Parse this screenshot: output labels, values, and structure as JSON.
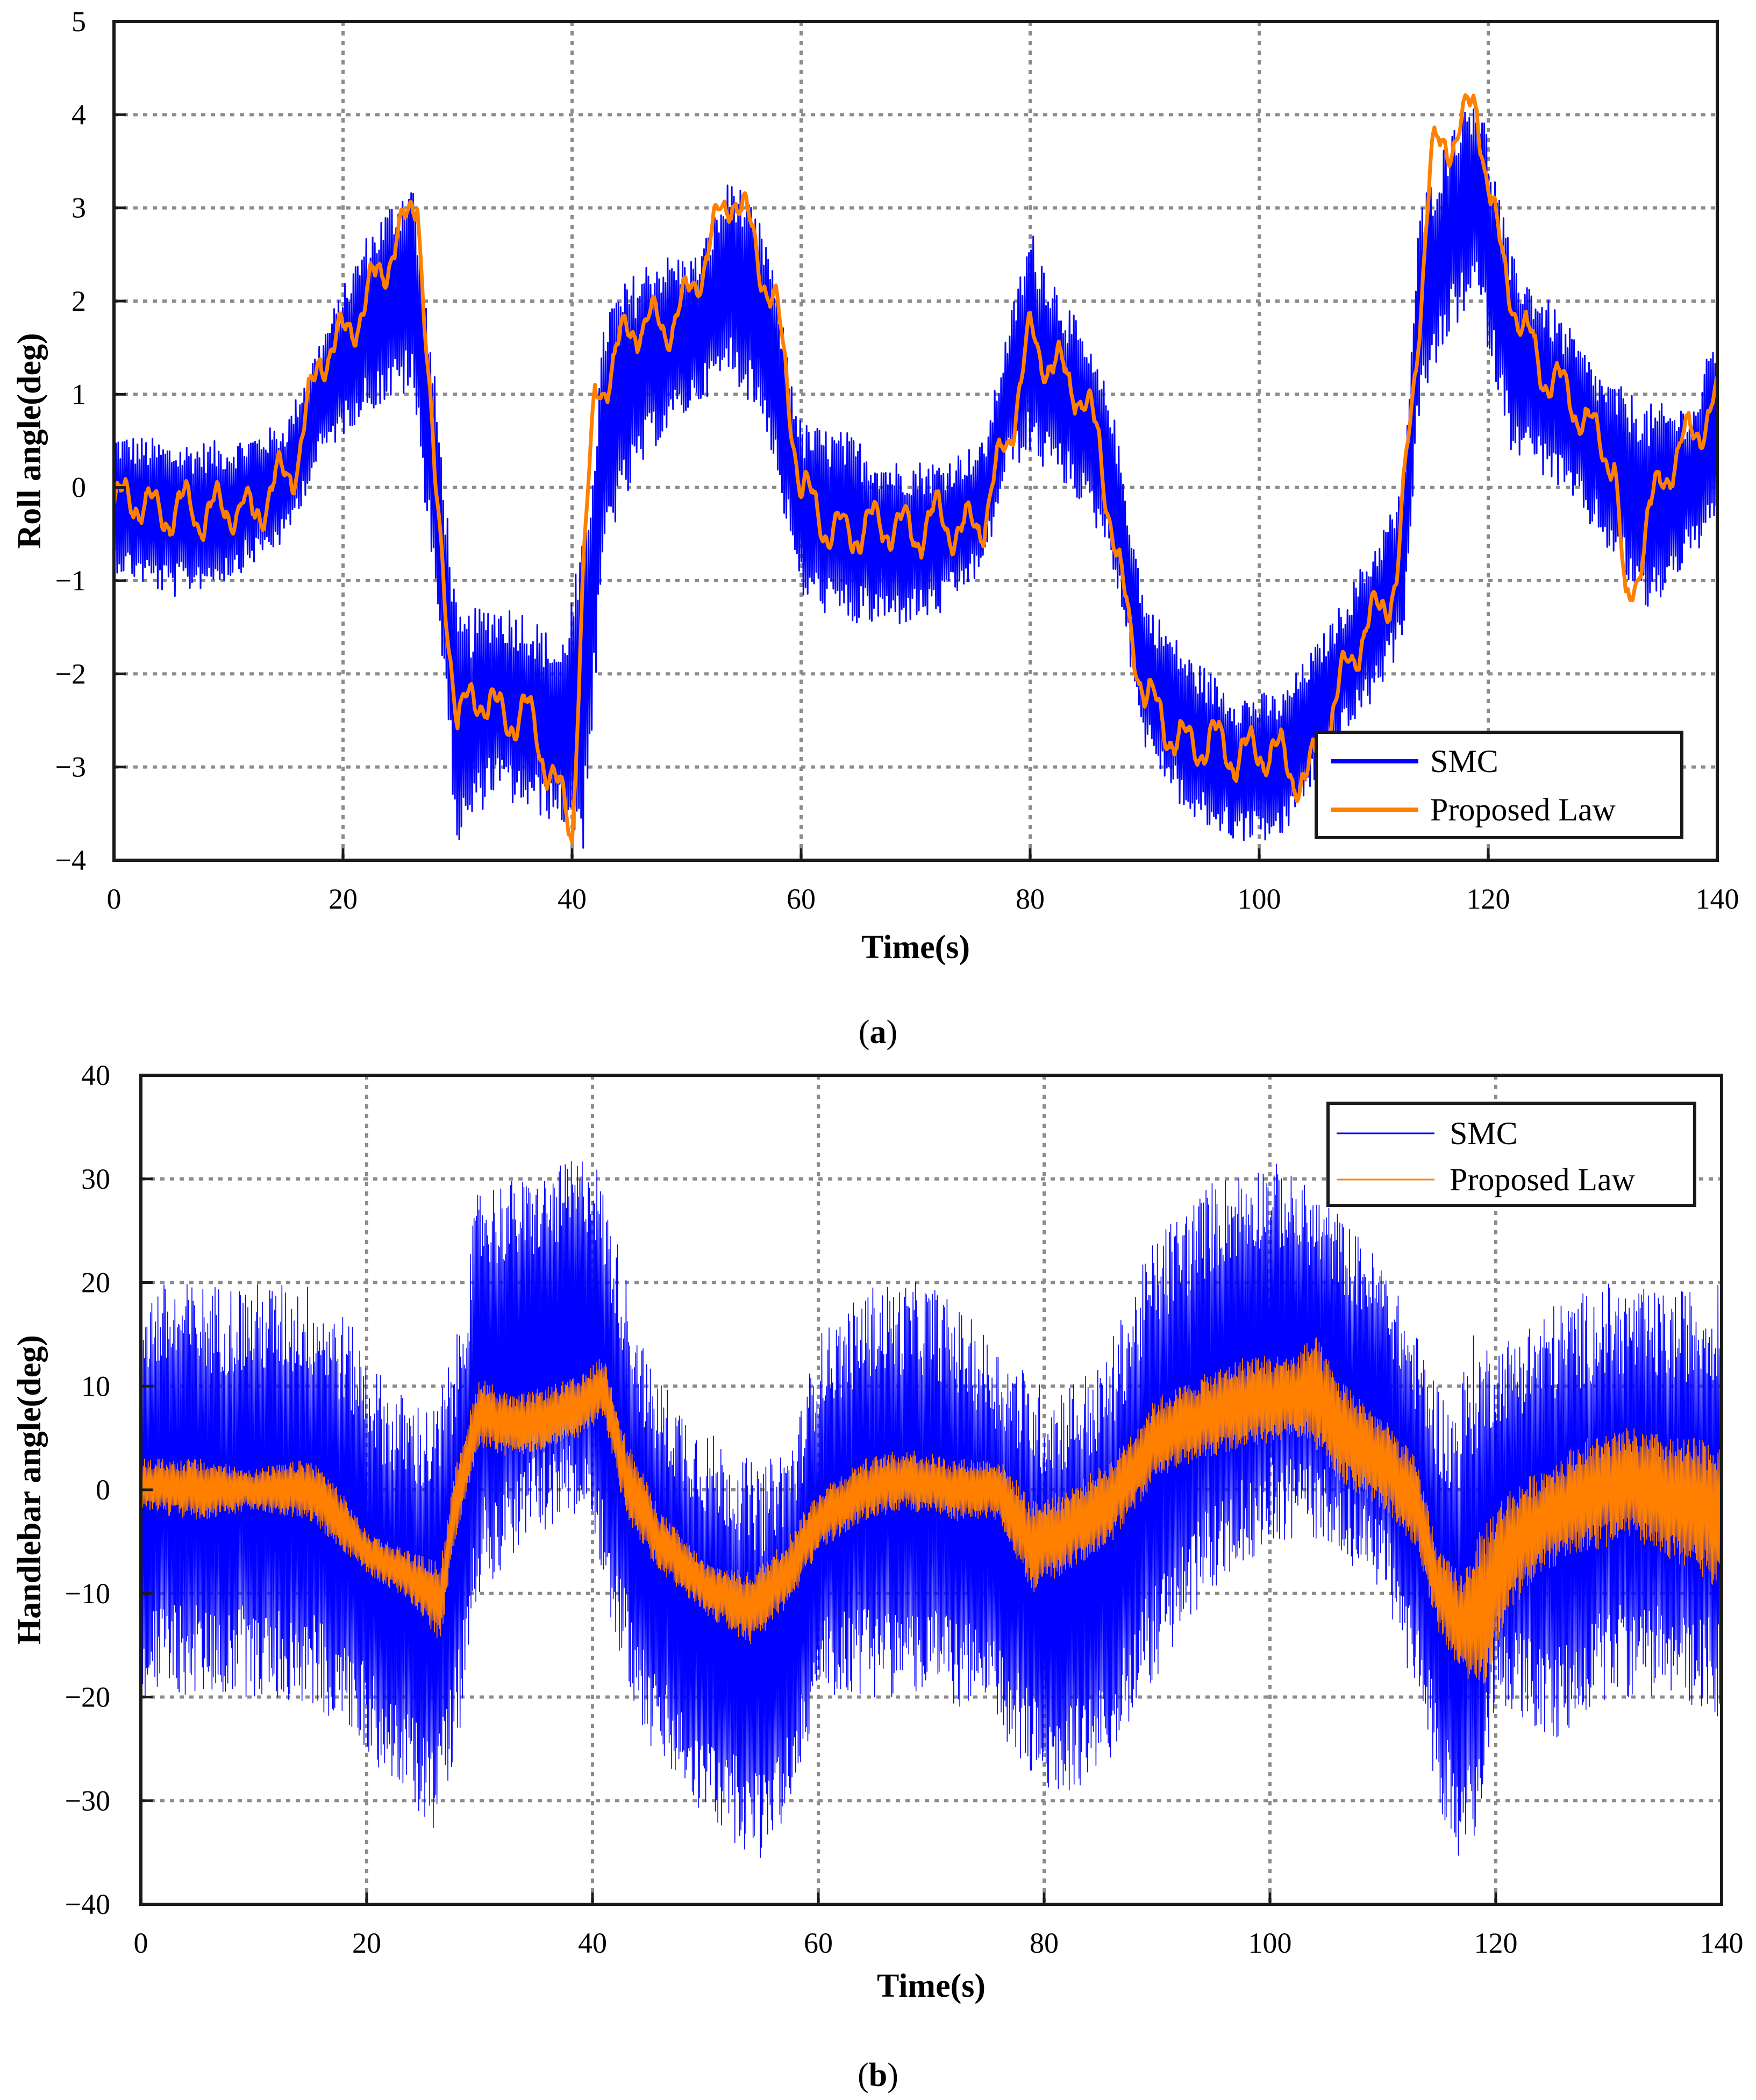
{
  "chart_data": [
    {
      "type": "line",
      "panel_caption": {
        "open": "(",
        "letter": "a",
        "close": ")"
      },
      "xlabel": "Time(s)",
      "ylabel": "Roll angle(deg)",
      "xlim": [
        0,
        140
      ],
      "ylim": [
        -4,
        5
      ],
      "xticks": [
        0,
        20,
        40,
        60,
        80,
        100,
        120,
        140
      ],
      "yticks": [
        -4,
        -3,
        -2,
        -1,
        0,
        1,
        2,
        3,
        4,
        5
      ],
      "ytick_labels": [
        "−4",
        "−3",
        "−2",
        "−1",
        "0",
        "1",
        "2",
        "3",
        "4",
        "5"
      ],
      "grid": true,
      "legend_position": "bottom-right",
      "series": [
        {
          "name": "SMC",
          "color": "#0000ff",
          "kind": "band",
          "x": [
            0,
            5,
            10,
            15,
            18,
            22,
            26,
            28,
            30,
            33,
            36,
            39,
            41,
            43,
            47,
            51,
            54,
            57,
            60,
            64,
            68,
            72,
            76,
            78,
            80,
            84,
            87,
            90,
            94,
            98,
            102,
            106,
            110,
            112.5,
            114,
            117,
            119,
            122,
            126,
            130,
            134,
            138,
            140
          ],
          "upper": [
            0.6,
            0.5,
            0.5,
            0.7,
            1.6,
            2.7,
            3.4,
            1.2,
            -1.4,
            -1.2,
            -1.3,
            -1.7,
            -0.5,
            2.0,
            2.5,
            2.5,
            3.4,
            2.7,
            0.7,
            0.6,
            0.3,
            0.3,
            0.5,
            1.7,
            2.8,
            1.8,
            1.0,
            -1.2,
            -1.8,
            -2.2,
            -2.2,
            -1.5,
            -0.6,
            0.0,
            3.0,
            4.0,
            4.4,
            2.5,
            1.9,
            1.2,
            0.9,
            0.9,
            1.8
          ],
          "lower": [
            -0.9,
            -1.2,
            -1.0,
            -0.6,
            0.3,
            0.8,
            1.0,
            -1.0,
            -3.9,
            -3.3,
            -3.5,
            -3.6,
            -3.9,
            -0.6,
            0.4,
            0.9,
            1.2,
            0.6,
            -1.2,
            -1.5,
            -1.5,
            -1.4,
            -0.9,
            0.2,
            0.3,
            -0.1,
            -0.7,
            -2.8,
            -3.6,
            -3.8,
            -3.8,
            -2.9,
            -2.3,
            -1.7,
            0.8,
            1.7,
            2.0,
            0.4,
            0.0,
            -0.6,
            -1.4,
            -0.7,
            -0.6
          ]
        },
        {
          "name": "Proposed Law",
          "color": "#ff8000",
          "kind": "line",
          "x": [
            0,
            2,
            4,
            6,
            8,
            10,
            12,
            14,
            16,
            18,
            20,
            22,
            24,
            25.5,
            26.5,
            28,
            30,
            32,
            34,
            36,
            38,
            40,
            41,
            42,
            44,
            46,
            48,
            50,
            52,
            54,
            56,
            58,
            60,
            62,
            64,
            66,
            68,
            70,
            72,
            74,
            76,
            78,
            80,
            82,
            84,
            86,
            88,
            90,
            92,
            94,
            96,
            98,
            100,
            102,
            104,
            106,
            108,
            110,
            112,
            113.5,
            115,
            117,
            119,
            121,
            123,
            125,
            127,
            129,
            131,
            132,
            134,
            136,
            138,
            140
          ],
          "y": [
            -0.2,
            -0.1,
            -0.3,
            -0.2,
            -0.3,
            -0.2,
            -0.3,
            0.0,
            0.3,
            1.4,
            1.6,
            2.0,
            2.5,
            2.8,
            3.2,
            0.0,
            -2.5,
            -2.2,
            -2.5,
            -2.4,
            -3.0,
            -3.7,
            -0.8,
            0.9,
            1.5,
            1.8,
            1.7,
            2.0,
            2.6,
            3.2,
            2.6,
            1.8,
            0.0,
            -0.4,
            -0.5,
            -0.4,
            -0.4,
            -0.5,
            -0.3,
            -0.5,
            -0.3,
            0.5,
            1.6,
            1.3,
            1.1,
            0.5,
            -1.1,
            -2.2,
            -2.6,
            -2.8,
            -2.7,
            -2.9,
            -2.8,
            -2.9,
            -3.2,
            -2.6,
            -1.8,
            -1.4,
            -1.0,
            1.1,
            3.5,
            3.8,
            4.1,
            2.5,
            1.7,
            1.2,
            1.0,
            0.6,
            0.3,
            -1.4,
            -0.3,
            0.3,
            0.6,
            0.9
          ]
        }
      ]
    },
    {
      "type": "line",
      "panel_caption": {
        "open": "(",
        "letter": "b",
        "close": ")"
      },
      "xlabel": "Time(s)",
      "ylabel": "Handlebar angle(deg)",
      "xlim": [
        0,
        140
      ],
      "ylim": [
        -40,
        40
      ],
      "xticks": [
        0,
        20,
        40,
        60,
        80,
        100,
        120,
        140
      ],
      "yticks": [
        -40,
        -30,
        -20,
        -10,
        0,
        10,
        20,
        30,
        40
      ],
      "ytick_labels": [
        "−40",
        "−30",
        "−20",
        "−10",
        "0",
        "10",
        "20",
        "30",
        "40"
      ],
      "grid": true,
      "legend_position": "top-right",
      "series": [
        {
          "name": "SMC",
          "color": "#0000ff",
          "kind": "band",
          "x": [
            0,
            5,
            10,
            15,
            18,
            22,
            26,
            28,
            30,
            35,
            40,
            42,
            45,
            50,
            55,
            58,
            60,
            65,
            70,
            75,
            80,
            85,
            90,
            95,
            100,
            105,
            110,
            113,
            116,
            118,
            120,
            125,
            130,
            135,
            140
          ],
          "upper": [
            20,
            20,
            20,
            20,
            17,
            10,
            8,
            15,
            30,
            30,
            33,
            25,
            12,
            6,
            2,
            6,
            15,
            20,
            20,
            15,
            10,
            12,
            25,
            30,
            32,
            28,
            22,
            15,
            8,
            15,
            14,
            18,
            20,
            19,
            20
          ],
          "lower": [
            -20,
            -20,
            -20,
            -21,
            -23,
            -28,
            -33,
            -25,
            -10,
            -4,
            -3,
            -15,
            -25,
            -32,
            -36,
            -30,
            -20,
            -20,
            -20,
            -22,
            -30,
            -28,
            -18,
            -10,
            -5,
            -5,
            -10,
            -20,
            -35,
            -38,
            -20,
            -25,
            -20,
            -20,
            -22
          ]
        },
        {
          "name": "Proposed Law",
          "color": "#ff8000",
          "kind": "band",
          "x": [
            0,
            5,
            10,
            15,
            17,
            20,
            24,
            26.5,
            28,
            30,
            33,
            36,
            39,
            41,
            43,
            46,
            50,
            54,
            57,
            60,
            64,
            68,
            72,
            76,
            79,
            82,
            86,
            90,
            94,
            98,
            102,
            104,
            106,
            110,
            113,
            115,
            117,
            119,
            121,
            124,
            128,
            132,
            136,
            140
          ],
          "upper": [
            3,
            3,
            2,
            3,
            1,
            -4,
            -6,
            -7,
            3,
            11,
            9,
            10,
            11,
            13,
            5,
            -2,
            -7,
            -8,
            -5,
            0,
            3,
            4,
            3,
            3,
            -1,
            0,
            3,
            9,
            11,
            13,
            13,
            15,
            11,
            7,
            3,
            -6,
            -8,
            -3,
            0,
            2,
            5,
            6,
            5,
            5
          ],
          "lower": [
            -2,
            -3,
            -2,
            -3,
            -5,
            -8,
            -11,
            -15,
            -4,
            4,
            3,
            4,
            5,
            7,
            -3,
            -8,
            -12,
            -15,
            -12,
            -6,
            -3,
            -2,
            -3,
            -3,
            -10,
            -8,
            -5,
            1,
            3,
            4,
            5,
            4,
            1,
            -2,
            -6,
            -14,
            -18,
            -19,
            -12,
            -8,
            -6,
            -5,
            -7,
            -10
          ]
        }
      ]
    }
  ]
}
